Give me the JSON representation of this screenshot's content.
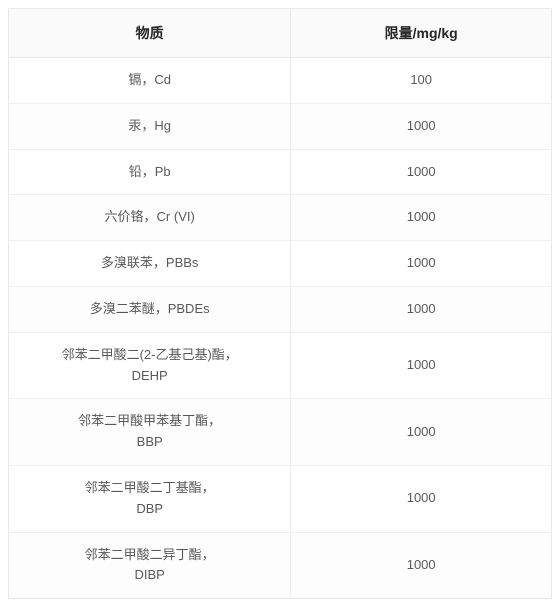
{
  "table": {
    "columns": [
      "物质",
      "限量/mg/kg"
    ],
    "column_widths": [
      "52%",
      "48%"
    ],
    "header_bg": "#fafafa",
    "header_color": "#262626",
    "header_fontsize": 14,
    "cell_color": "#595959",
    "cell_fontsize": 13,
    "border_color": "#e8e8e8",
    "row_border_color": "#f0f0f0",
    "rows": [
      {
        "substance": "镉，Cd",
        "limit": "100"
      },
      {
        "substance": "汞，Hg",
        "limit": "1000"
      },
      {
        "substance": "铅，Pb",
        "limit": "1000"
      },
      {
        "substance": "六价铬，Cr (VI)",
        "limit": "1000"
      },
      {
        "substance": "多溴联苯，PBBs",
        "limit": "1000"
      },
      {
        "substance": "多溴二苯醚，PBDEs",
        "limit": "1000"
      },
      {
        "substance": "邻苯二甲酸二(2-乙基己基)酯，\nDEHP",
        "limit": "1000"
      },
      {
        "substance": "邻苯二甲酸甲苯基丁酯，\nBBP",
        "limit": "1000"
      },
      {
        "substance": "邻苯二甲酸二丁基酯，\nDBP",
        "limit": "1000"
      },
      {
        "substance": "邻苯二甲酸二异丁酯，\nDIBP",
        "limit": "1000"
      }
    ]
  }
}
